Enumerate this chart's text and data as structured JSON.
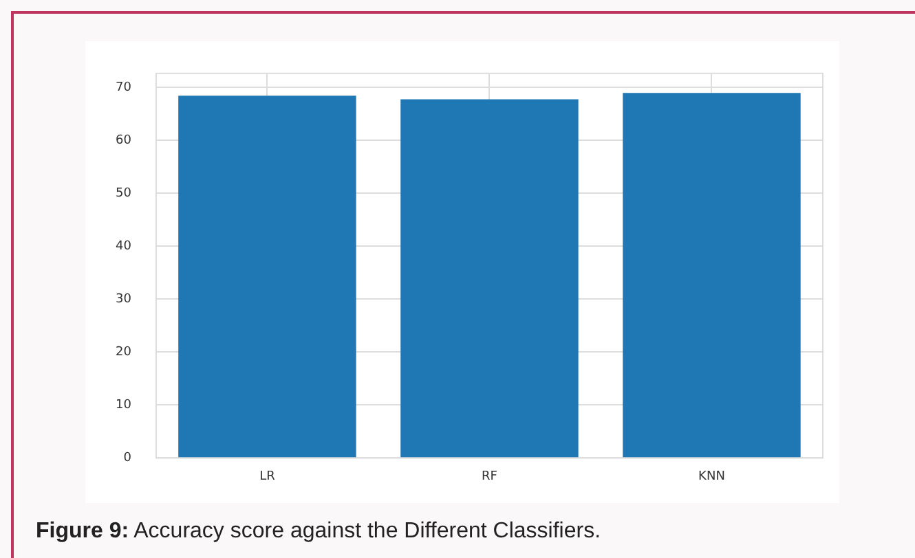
{
  "chart_data": {
    "type": "bar",
    "title": "Figure 9: Accuracy score against the Different Classifiers.",
    "categories": [
      "LR",
      "RF",
      "KNN"
    ],
    "values": [
      68.4,
      67.7,
      68.9
    ],
    "color": "#1f77b4",
    "ylim": [
      0,
      72.6
    ],
    "yticks": [
      0,
      10,
      20,
      30,
      40,
      50,
      60,
      70
    ],
    "grid": true,
    "legend": false
  }
}
